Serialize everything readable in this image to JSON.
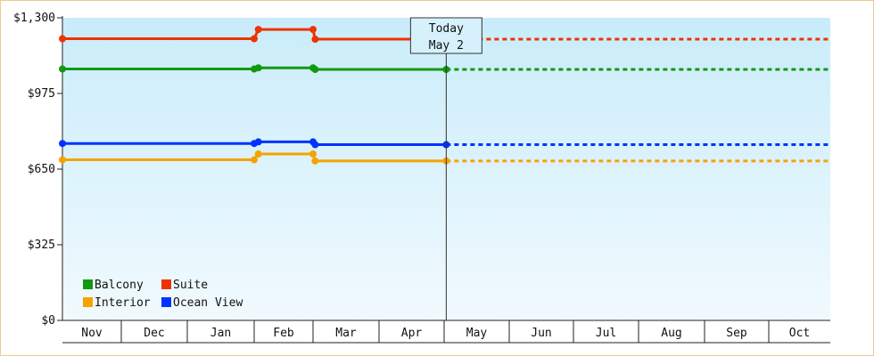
{
  "chart_data": {
    "type": "line",
    "x_categories": [
      "Nov",
      "Dec",
      "Jan",
      "Feb",
      "Mar",
      "Apr",
      "May",
      "Jun",
      "Jul",
      "Aug",
      "Sep",
      "Oct"
    ],
    "y_ticks": [
      "$0",
      "$325",
      "$650",
      "$975",
      "$1,300"
    ],
    "ylim": [
      0,
      1300
    ],
    "today_marker": {
      "line1": "Today",
      "line2": "May 2"
    },
    "grid": false,
    "legend_placement": "bottom-left",
    "series": [
      {
        "name": "Balcony",
        "color": "#119911",
        "points": [
          [
            "Nov 1",
            1080
          ],
          [
            "Feb 1",
            1080
          ],
          [
            "Feb 3",
            1085
          ],
          [
            "Mar 1",
            1085
          ],
          [
            "Mar 2",
            1078
          ],
          [
            "May 2",
            1078
          ]
        ],
        "projected": [
          [
            "May 2",
            1078
          ],
          [
            "Oct 31",
            1078
          ]
        ]
      },
      {
        "name": "Suite",
        "color": "#ee3300",
        "points": [
          [
            "Nov 1",
            1210
          ],
          [
            "Feb 1",
            1210
          ],
          [
            "Feb 3",
            1250
          ],
          [
            "Mar 1",
            1250
          ],
          [
            "Mar 2",
            1208
          ],
          [
            "May 2",
            1208
          ]
        ],
        "projected": [
          [
            "May 2",
            1208
          ],
          [
            "Oct 31",
            1208
          ]
        ]
      },
      {
        "name": "Interior",
        "color": "#f5a300",
        "points": [
          [
            "Nov 1",
            690
          ],
          [
            "Feb 1",
            690
          ],
          [
            "Feb 3",
            715
          ],
          [
            "Mar 1",
            715
          ],
          [
            "Mar 2",
            685
          ],
          [
            "May 2",
            685
          ]
        ],
        "projected": [
          [
            "May 2",
            685
          ],
          [
            "Oct 31",
            685
          ]
        ]
      },
      {
        "name": "Ocean View",
        "color": "#0033ff",
        "points": [
          [
            "Nov 1",
            760
          ],
          [
            "Feb 1",
            760
          ],
          [
            "Feb 3",
            767
          ],
          [
            "Mar 1",
            767
          ],
          [
            "Mar 2",
            755
          ],
          [
            "May 2",
            755
          ]
        ],
        "projected": [
          [
            "May 2",
            755
          ],
          [
            "Oct 31",
            755
          ]
        ]
      }
    ]
  }
}
